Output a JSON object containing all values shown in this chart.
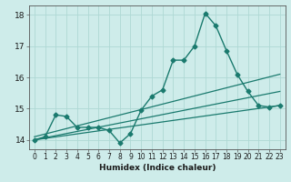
{
  "title": "",
  "xlabel": "Humidex (Indice chaleur)",
  "ylabel": "",
  "background_color": "#ceecea",
  "grid_color": "#aed8d4",
  "line_color": "#1a7a6e",
  "xlim": [
    -0.5,
    23.5
  ],
  "ylim": [
    13.7,
    18.3
  ],
  "yticks": [
    14,
    15,
    16,
    17,
    18
  ],
  "xtick_labels": [
    "0",
    "1",
    "2",
    "3",
    "4",
    "5",
    "6",
    "7",
    "8",
    "9",
    "10",
    "11",
    "12",
    "13",
    "14",
    "15",
    "16",
    "17",
    "18",
    "19",
    "20",
    "21",
    "22",
    "23"
  ],
  "series": [
    {
      "x": [
        0,
        1,
        2,
        3,
        4,
        5,
        6,
        7,
        8,
        9,
        10,
        11,
        12,
        13,
        14,
        15,
        16,
        17,
        18,
        19,
        20,
        21,
        22,
        23
      ],
      "y": [
        14.0,
        14.1,
        14.8,
        14.75,
        14.4,
        14.4,
        14.4,
        14.3,
        13.9,
        14.2,
        14.95,
        15.4,
        15.6,
        16.55,
        16.55,
        17.0,
        18.05,
        17.65,
        16.85,
        16.1,
        15.55,
        15.1,
        15.05,
        15.1
      ],
      "marker": "D",
      "markersize": 2.5,
      "linewidth": 1.0
    },
    {
      "x": [
        0,
        23
      ],
      "y": [
        14.0,
        15.1
      ],
      "marker": null,
      "linewidth": 0.9
    },
    {
      "x": [
        0,
        23
      ],
      "y": [
        14.0,
        15.55
      ],
      "marker": null,
      "linewidth": 0.9
    },
    {
      "x": [
        0,
        23
      ],
      "y": [
        14.1,
        16.1
      ],
      "marker": null,
      "linewidth": 0.9
    }
  ]
}
